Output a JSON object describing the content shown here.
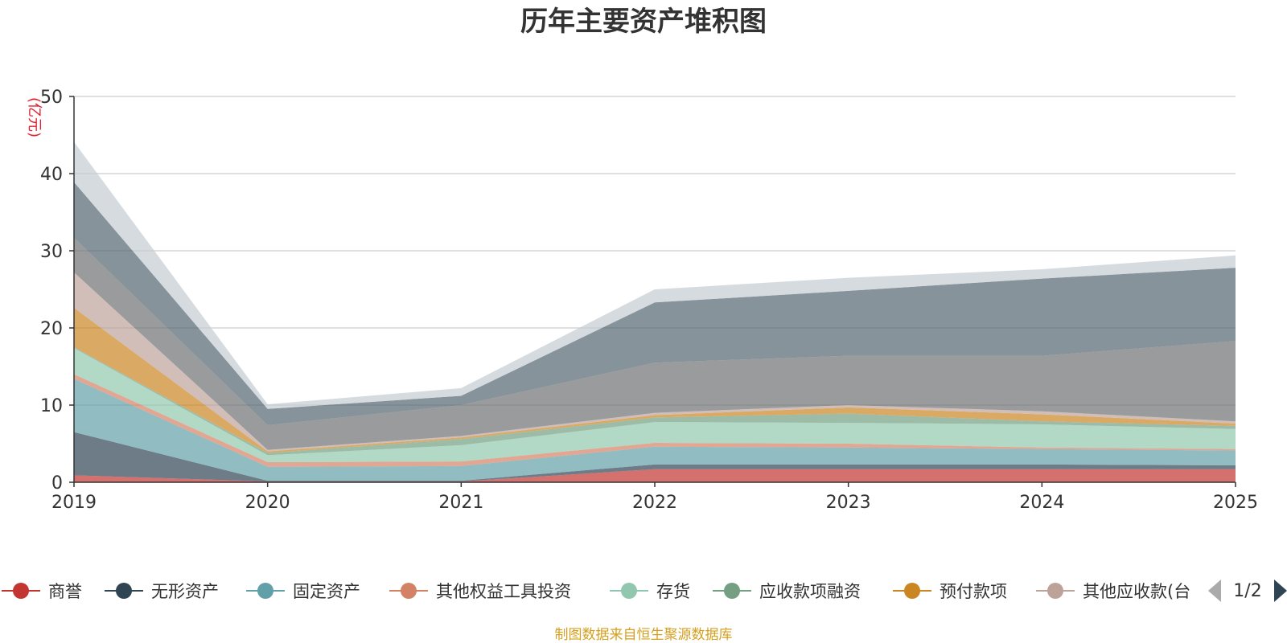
{
  "chart_data": {
    "type": "area",
    "stacked": true,
    "title": "历年主要资产堆积图",
    "unit_label": "(亿元)",
    "ylim": [
      0,
      50
    ],
    "yticks": [
      0,
      10,
      20,
      30,
      40,
      50
    ],
    "categories": [
      "2019",
      "2020",
      "2021",
      "2022",
      "2023",
      "2024",
      "2025"
    ],
    "series": [
      {
        "name": "商誉",
        "color": "#c23531",
        "values": [
          0.9,
          0.1,
          0.1,
          1.7,
          1.7,
          1.7,
          1.7
        ],
        "legend": true
      },
      {
        "name": "无形资产",
        "color": "#2f4554",
        "values": [
          5.6,
          0.1,
          0.1,
          0.6,
          0.6,
          0.6,
          0.5
        ],
        "legend": true
      },
      {
        "name": "固定资产",
        "color": "#61a0a8",
        "values": [
          6.9,
          1.8,
          1.9,
          2.3,
          2.2,
          2.0,
          1.9
        ],
        "legend": true
      },
      {
        "name": "其他权益工具投资",
        "color": "#d48265",
        "values": [
          0.6,
          0.6,
          0.6,
          0.5,
          0.5,
          0.2,
          0.2
        ],
        "legend": true
      },
      {
        "name": "存货",
        "color": "#91c7ae",
        "values": [
          3.4,
          0.9,
          2.1,
          2.7,
          2.7,
          3.0,
          2.6
        ],
        "legend": true
      },
      {
        "name": "应收款项融资",
        "color": "#749f83",
        "values": [
          0.1,
          0.3,
          0.8,
          0.6,
          1.2,
          0.4,
          0.4
        ],
        "legend": true
      },
      {
        "name": "预付款项",
        "color": "#ca8622",
        "values": [
          5.1,
          0.2,
          0.2,
          0.3,
          0.8,
          0.9,
          0.3
        ],
        "legend": true
      },
      {
        "name": "其他应收款(合计)",
        "legend_label": "其他应收款(台",
        "color": "#bda29a",
        "values": [
          4.6,
          0.2,
          0.2,
          0.3,
          0.3,
          0.4,
          0.3
        ],
        "legend": true
      },
      {
        "name": "series-9",
        "color": "#6e7074",
        "values": [
          4.5,
          3.2,
          4.0,
          6.5,
          6.4,
          7.2,
          10.4
        ],
        "legend": false
      },
      {
        "name": "series-10",
        "color": "#546570",
        "values": [
          7.2,
          2.1,
          1.2,
          7.8,
          8.4,
          10.0,
          9.5
        ],
        "legend": false
      },
      {
        "name": "series-11",
        "color": "#c4ccd3",
        "values": [
          5.2,
          0.6,
          1.0,
          1.7,
          1.7,
          1.2,
          1.6
        ],
        "legend": false
      }
    ]
  },
  "legend": {
    "page_indicator": "1/2"
  },
  "footer": {
    "source_text": "制图数据来自恒生聚源数据库"
  }
}
